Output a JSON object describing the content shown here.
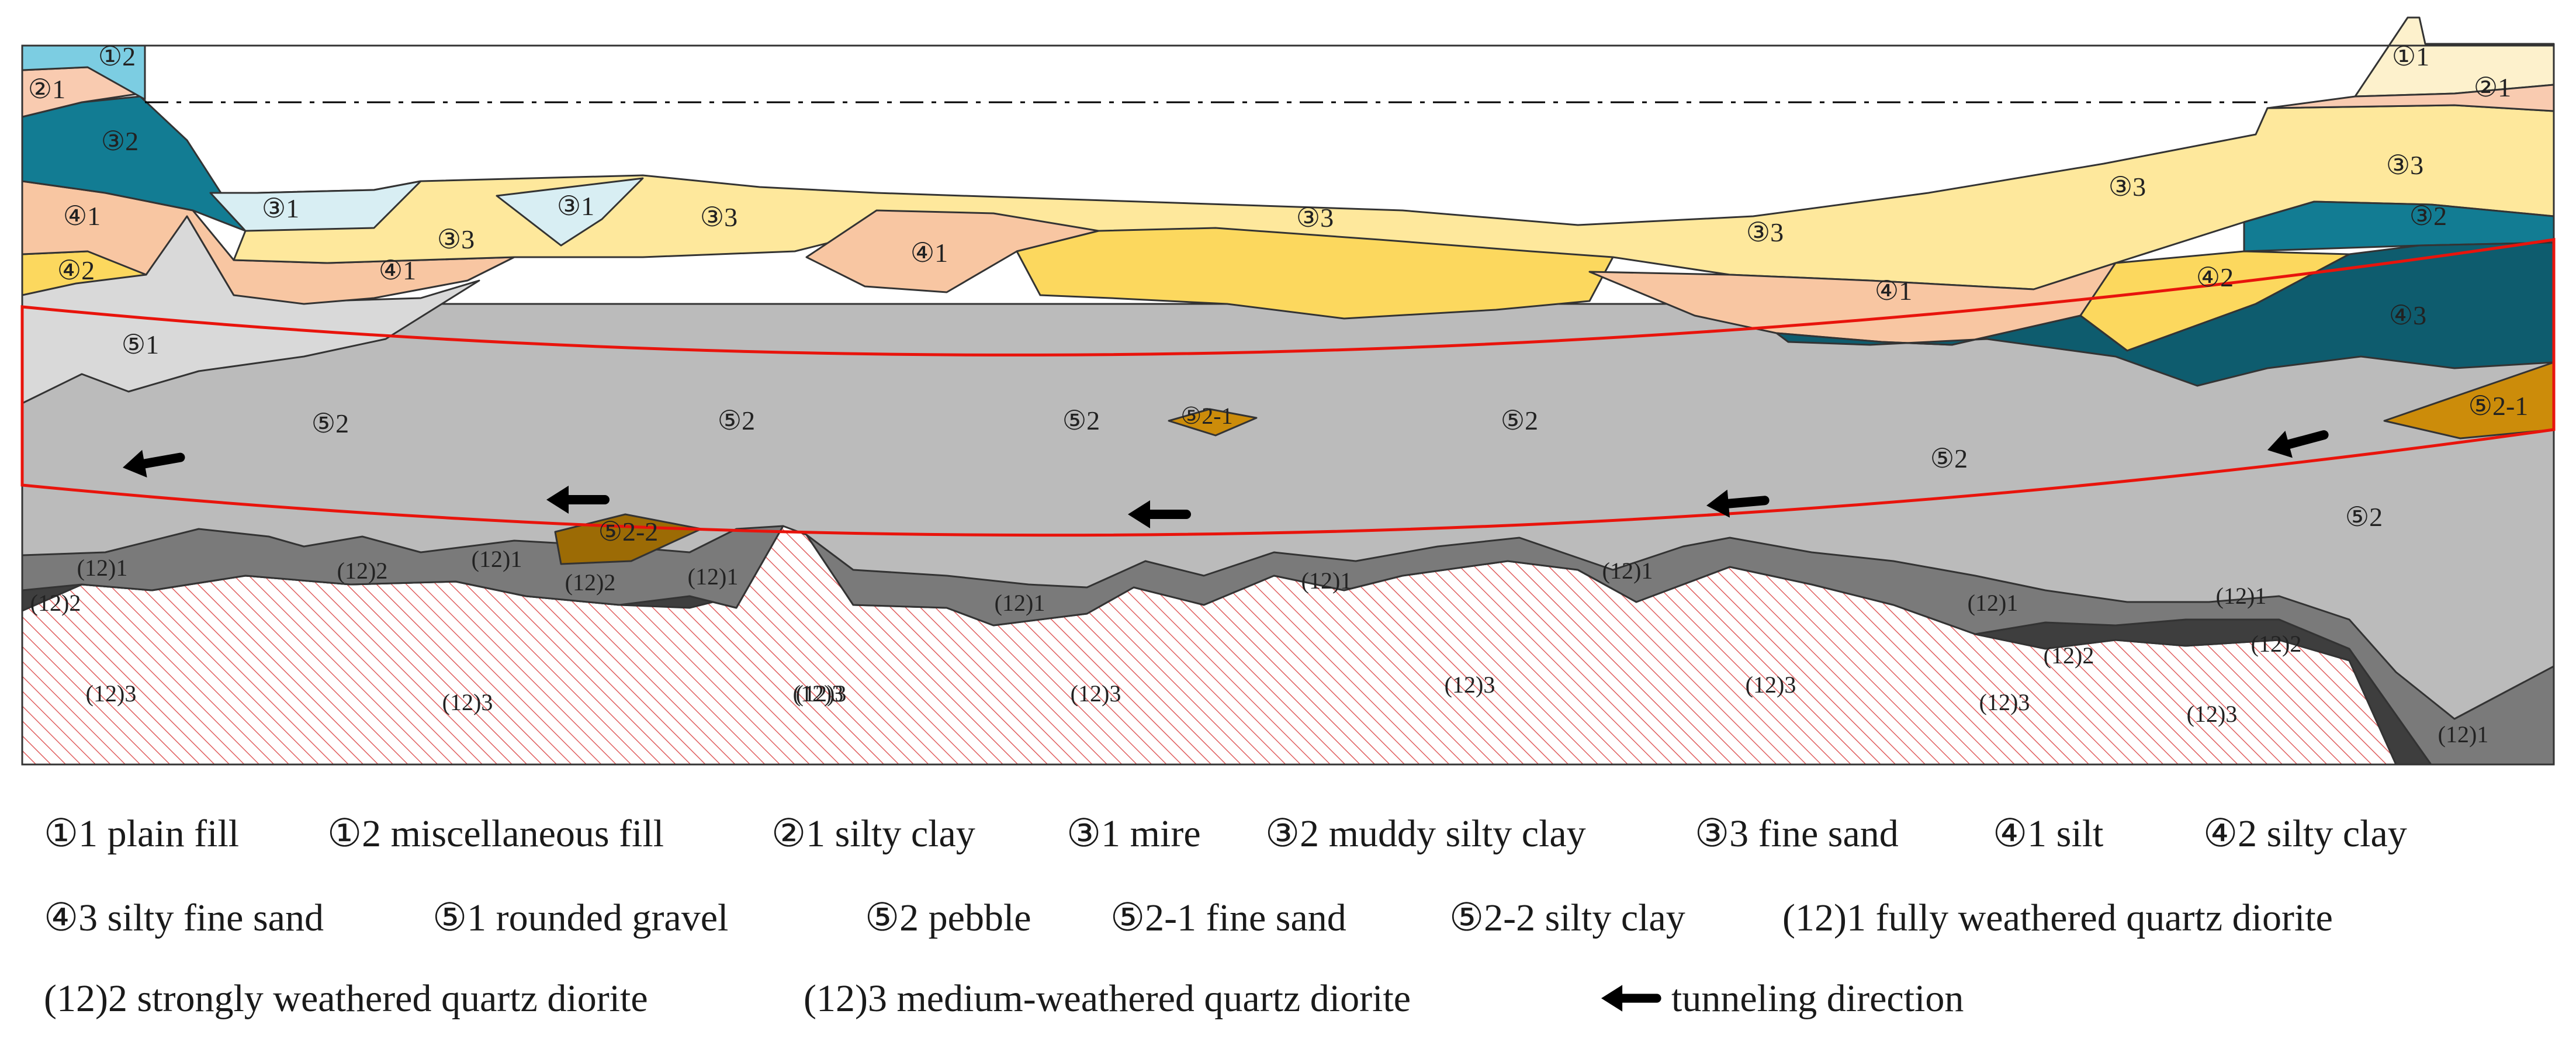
{
  "colors": {
    "c1_1": "#FDF1CC",
    "c1_2": "#7CCDE2",
    "c2_1": "#F9CBB0",
    "c3_1": "#D8EEF3",
    "c3_2": "#127C93",
    "c3_3": "#FEE89C",
    "c4_1": "#F8C6A2",
    "c4_2": "#FCD85E",
    "c4_3": "#0E5C6E",
    "c5_1": "#D9D9D9",
    "c5_2": "#BBBBBB",
    "c5_2_1": "#CC8C0A",
    "c5_2_2": "#9C6B05",
    "c12_1": "#7A7A7A",
    "c12_2": "#3E3E3E",
    "c12_3_hatch": "#E06060",
    "tunnel": "#E8140C",
    "arrow": "#000000"
  },
  "layer_labels": [
    "①2",
    "②1",
    "③2",
    "④1",
    "④2",
    "⑤1",
    "③1",
    "③3",
    "③1",
    "④1",
    "③3",
    "③3",
    "④1",
    "③3",
    "③3",
    "④1",
    "④2",
    "①1",
    "②1",
    "③3",
    "③2",
    "④3",
    "⑤2",
    "⑤2",
    "⑤2",
    "⑤2",
    "⑤2",
    "⑤2",
    "⑤2-1",
    "⑤2-1",
    "⑤2-2",
    "(12)1",
    "(12)2",
    "(12)2",
    "(12)1",
    "(12)2",
    "(12)1",
    "(12)1",
    "(12)1",
    "(12)1",
    "(12)1",
    "(12)1",
    "(12)2",
    "(12)2",
    "(12)1",
    "(12)3",
    "(12)3",
    "(12)3",
    "(12)3",
    "(12)3",
    "(12)3",
    "(12)3",
    "(12)3",
    "(12)3"
  ],
  "legend": {
    "row1": [
      "①1 plain fill",
      "①2 miscellaneous fill",
      "②1 silty clay",
      "③1 mire",
      "③2 muddy silty clay",
      "③3 fine sand",
      "④1 silt",
      "④2 silty clay"
    ],
    "row2": [
      "④3 silty fine sand",
      "⑤1 rounded gravel",
      "⑤2 pebble",
      "⑤2-1 fine sand",
      "⑤2-2 silty clay",
      "(12)1 fully weathered quartz diorite"
    ],
    "row3": [
      "(12)2 strongly weathered quartz diorite",
      "(12)3 medium-weathered quartz diorite",
      "tunneling direction"
    ]
  }
}
